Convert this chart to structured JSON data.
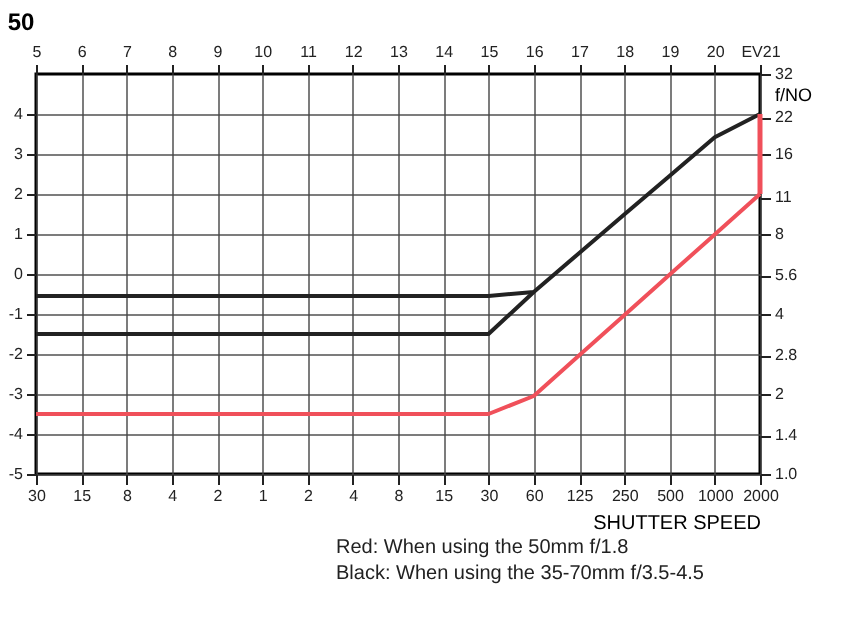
{
  "chart_data": {
    "type": "line",
    "annotations": [
      "50",
      "Red: When using the 50mm f/1.8",
      "Black: When using the 35-70mm f/3.5-4.5"
    ],
    "xlabel": "SHUTTER SPEED",
    "y2label": "f/NO",
    "categories": [
      "30",
      "15",
      "8",
      "4",
      "2",
      "1",
      "2",
      "4",
      "8",
      "15",
      "30",
      "60",
      "125",
      "250",
      "500",
      "1000",
      "2000"
    ],
    "x2lim": [
      5,
      21
    ],
    "x2ticks": [
      5,
      6,
      7,
      8,
      9,
      10,
      11,
      12,
      13,
      14,
      15,
      16,
      17,
      18,
      19,
      20,
      {
        "value": 21,
        "label": "EV21"
      }
    ],
    "ylim": [
      -5,
      5
    ],
    "yticks": [
      4,
      3,
      2,
      1,
      0,
      -1,
      -2,
      -3,
      -4,
      -5
    ],
    "log": "y2",
    "y2lim": [
      1,
      32
    ],
    "y2ticks": [
      32,
      22,
      16,
      11,
      8,
      5.6,
      4,
      2.8,
      2,
      1.4,
      {
        "value": 1,
        "label": "1.0"
      }
    ],
    "grid": true,
    "line_style": "solid",
    "series": [
      {
        "color": "#222222",
        "values": [
          -0.55,
          -0.55,
          -0.55,
          -0.55,
          -0.55,
          -0.55,
          -0.55,
          -0.55,
          -0.55,
          -0.55,
          -0.55,
          -0.45,
          0.52,
          1.49,
          2.45,
          3.42,
          4
        ]
      },
      {
        "color": "#222222",
        "values": [
          -1.5,
          -1.5,
          -1.5,
          -1.5,
          -1.5,
          -1.5,
          -1.5,
          -1.5,
          -1.5,
          -1.5,
          -1.5,
          -0.45,
          null,
          null,
          null,
          null,
          null
        ]
      },
      {
        "color": "#f0505a",
        "values": [
          -3.5,
          -3.5,
          -3.5,
          -3.5,
          -3.5,
          -3.5,
          -3.5,
          -3.5,
          -3.5,
          -3.5,
          -3.5,
          -3.05,
          -2.04,
          -1.03,
          -0.02,
          0.99,
          2
        ],
        "errors": [
          null,
          null,
          null,
          null,
          null,
          null,
          null,
          null,
          null,
          null,
          null,
          null,
          null,
          null,
          null,
          null,
          [
            2,
            4
          ]
        ]
      }
    ]
  }
}
